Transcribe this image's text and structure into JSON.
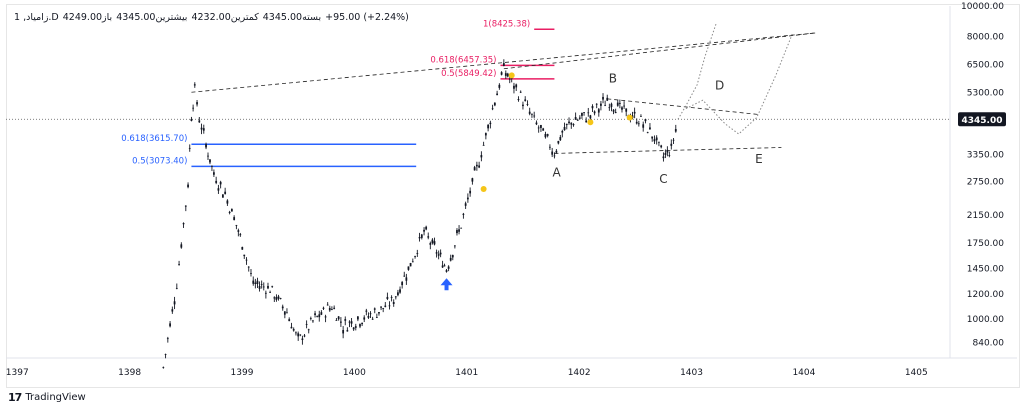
{
  "legend": {
    "symbol": "1 ,زامیاد.D",
    "open": "4249.00باز",
    "high": "4345.00بیشترین",
    "low": "4232.00کمترین",
    "close": "4345.00بسته",
    "change": "+95.00 (+2.24%)"
  },
  "footer": {
    "brand": "TradingView",
    "logo_glyph": "17"
  },
  "colors": {
    "fib_blue": "#2962ff",
    "fib_pink": "#e91e63",
    "candle": "#131722",
    "marker": "#f5c518",
    "arrow": "#2962ff",
    "price_tag_bg": "#131722"
  },
  "chart_data": {
    "type": "candlestick",
    "title": "",
    "xlabel": "",
    "ylabel": "",
    "x_range": [
      1396.9,
      1405.3
    ],
    "y_range": [
      750,
      10000
    ],
    "y_scale": "log",
    "x_ticks": [
      "1397",
      "1398",
      "1399",
      "1400",
      "1401",
      "1402",
      "1403",
      "1404",
      "1405"
    ],
    "y_ticks": [
      "10000.00",
      "8000.00",
      "6500.00",
      "5300.00",
      "4345.00",
      "3350.00",
      "2750.00",
      "2150.00",
      "1750.00",
      "1450.00",
      "1200.00",
      "1000.00",
      "840.00"
    ],
    "last_price": "4345.00",
    "price_path": [
      [
        1398.3,
        700
      ],
      [
        1398.42,
        1300
      ],
      [
        1398.52,
        2700
      ],
      [
        1398.55,
        4500
      ],
      [
        1398.58,
        5400
      ],
      [
        1398.62,
        4400
      ],
      [
        1398.68,
        3600
      ],
      [
        1398.75,
        2900
      ],
      [
        1398.85,
        2500
      ],
      [
        1398.95,
        2000
      ],
      [
        1399.02,
        1650
      ],
      [
        1399.1,
        1300
      ],
      [
        1399.25,
        1250
      ],
      [
        1399.4,
        1050
      ],
      [
        1399.5,
        850
      ],
      [
        1399.65,
        1000
      ],
      [
        1399.8,
        1100
      ],
      [
        1399.9,
        950
      ],
      [
        1400.05,
        1000
      ],
      [
        1400.2,
        1050
      ],
      [
        1400.35,
        1150
      ],
      [
        1400.5,
        1500
      ],
      [
        1400.62,
        1900
      ],
      [
        1400.75,
        1600
      ],
      [
        1400.82,
        1450
      ],
      [
        1400.95,
        2000
      ],
      [
        1401.05,
        2700
      ],
      [
        1401.15,
        3600
      ],
      [
        1401.25,
        5000
      ],
      [
        1401.33,
        6300
      ],
      [
        1401.4,
        5700
      ],
      [
        1401.5,
        5000
      ],
      [
        1401.6,
        4300
      ],
      [
        1401.7,
        3800
      ],
      [
        1401.78,
        3400
      ],
      [
        1401.85,
        3950
      ],
      [
        1401.95,
        4300
      ],
      [
        1402.1,
        4500
      ],
      [
        1402.25,
        5000
      ],
      [
        1402.4,
        4600
      ],
      [
        1402.55,
        4300
      ],
      [
        1402.65,
        3900
      ],
      [
        1402.75,
        3300
      ],
      [
        1402.82,
        3500
      ],
      [
        1402.88,
        4345
      ]
    ],
    "fib_levels": [
      {
        "label": "0.618(3615.70)",
        "value": 3615.7,
        "x_from": 1398.55,
        "x_to": 1400.55,
        "color": "blue"
      },
      {
        "label": "0.5(3073.40)",
        "value": 3073.4,
        "x_from": 1398.55,
        "x_to": 1400.55,
        "color": "blue"
      },
      {
        "label": "1(8425.38)",
        "value": 8425.38,
        "x_from": 1401.6,
        "x_to": 1401.78,
        "color": "pink"
      },
      {
        "label": "0.618(6457.35)",
        "value": 6457.35,
        "x_from": 1401.3,
        "x_to": 1401.78,
        "color": "pink"
      },
      {
        "label": "0.5(5849.42)",
        "value": 5849.42,
        "x_from": 1401.3,
        "x_to": 1401.78,
        "color": "pink"
      }
    ],
    "wave_labels": [
      {
        "label": "A",
        "x": 1401.8,
        "y": 2850
      },
      {
        "label": "B",
        "x": 1402.3,
        "y": 5700
      },
      {
        "label": "C",
        "x": 1402.75,
        "y": 2720
      },
      {
        "label": "D",
        "x": 1403.25,
        "y": 5400
      },
      {
        "label": "E",
        "x": 1403.6,
        "y": 3150
      }
    ],
    "trendlines": [
      {
        "from": [
          1398.55,
          5300
        ],
        "to": [
          1404.1,
          8200
        ]
      },
      {
        "from": [
          1401.33,
          6300
        ],
        "to": [
          1404.1,
          8200
        ]
      },
      {
        "from": [
          1401.78,
          3380
        ],
        "to": [
          1403.8,
          3530
        ]
      },
      {
        "from": [
          1402.25,
          5050
        ],
        "to": [
          1403.6,
          4500
        ]
      }
    ],
    "projection_paths": [
      [
        [
          1402.88,
          4345
        ],
        [
          1402.95,
          4800
        ],
        [
          1403.05,
          5600
        ],
        [
          1403.12,
          6900
        ],
        [
          1403.22,
          8800
        ]
      ],
      [
        [
          1402.95,
          4700
        ],
        [
          1403.1,
          5000
        ],
        [
          1403.3,
          4200
        ],
        [
          1403.42,
          3900
        ],
        [
          1403.58,
          4400
        ],
        [
          1403.75,
          6000
        ],
        [
          1403.9,
          8200
        ]
      ]
    ],
    "markers": [
      [
        1401.15,
        2600
      ],
      [
        1401.4,
        6000
      ],
      [
        1402.1,
        4250
      ],
      [
        1402.45,
        4400
      ]
    ],
    "arrow_up": [
      1400.82,
      1290
    ]
  }
}
